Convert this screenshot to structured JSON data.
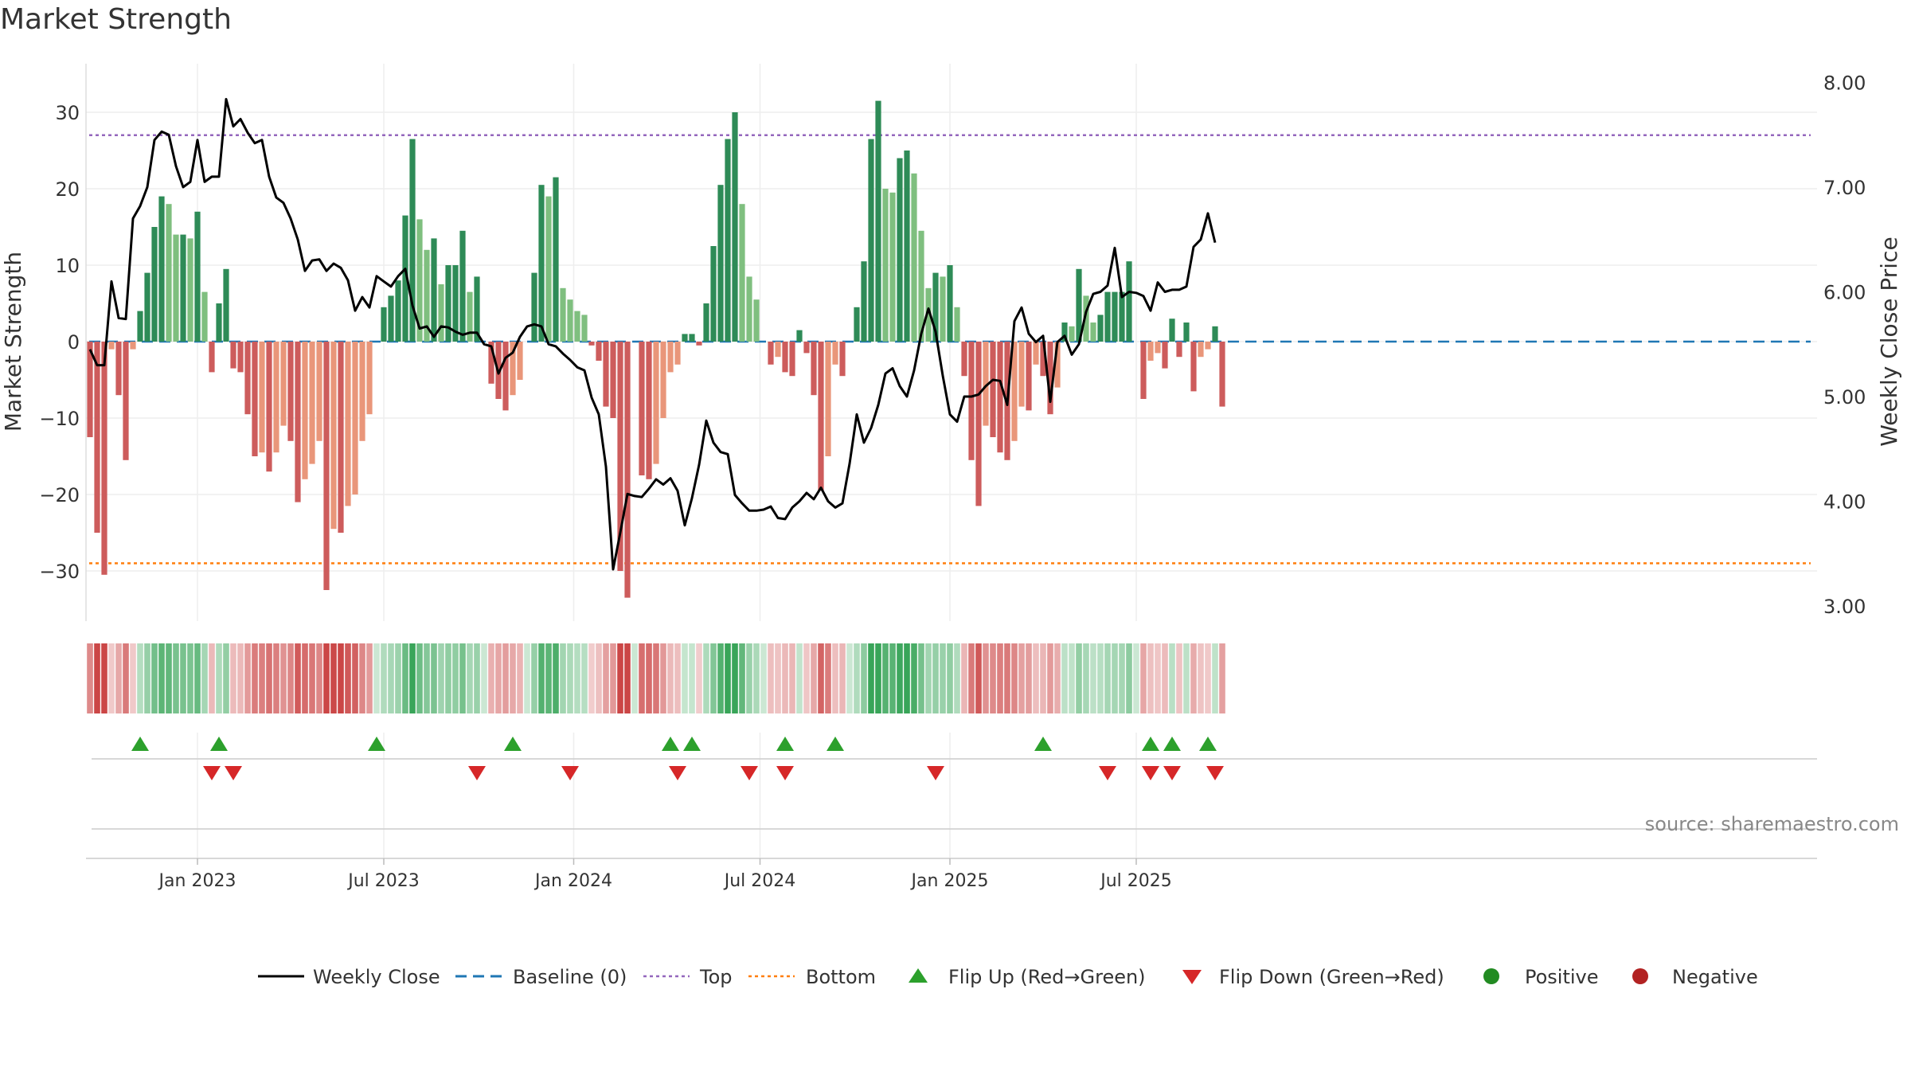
{
  "title": "Market Strength",
  "source": "source: sharemaestro.com",
  "colors": {
    "pos_strong": "#2e8b57",
    "pos_weak": "#7fbf7f",
    "neg_strong": "#cd5c5c",
    "neg_weak": "#e9967a",
    "close": "#000000",
    "baseline": "#1f77b4",
    "top": "#9467bd",
    "bottom": "#ff7f0e",
    "flip_up": "#2ca02c",
    "flip_down": "#d62728",
    "positive": "#228b22",
    "negative": "#b22222"
  },
  "chart_data": {
    "type": "bar",
    "title": "Market Strength",
    "ylabel": "Market Strength",
    "y2label": "Weekly Close Price",
    "ylim": [
      -36,
      36
    ],
    "y2lim": [
      2.85,
      8.2
    ],
    "yticks": [
      -30,
      -20,
      -10,
      0,
      10,
      20,
      30
    ],
    "ytick_labels": [
      "−30",
      "−20",
      "−10",
      "0",
      "10",
      "20",
      "30"
    ],
    "y2ticks": [
      3.0,
      4.0,
      5.0,
      6.0,
      7.0,
      8.0
    ],
    "y2tick_labels": [
      "3.00",
      "4.00",
      "5.00",
      "6.00",
      "7.00",
      "8.00"
    ],
    "xlim": [
      0,
      157
    ],
    "xticks": [
      15,
      41,
      67.5,
      93.5,
      120,
      146
    ],
    "xtick_labels": [
      "Jan 2023",
      "Jul 2023",
      "Jan 2024",
      "Jul 2024",
      "Jan 2025",
      "Jul 2025"
    ],
    "top_level": 27,
    "bottom_level": -29,
    "strength": [
      -12.5,
      -25,
      -30.5,
      -1,
      -7,
      -15.5,
      -1,
      4,
      9,
      15,
      19,
      18,
      14,
      14,
      13.5,
      17,
      6.5,
      -4,
      5,
      9.5,
      -3.5,
      -4,
      -9.5,
      -15,
      -14.5,
      -17,
      -14.5,
      -11,
      -13,
      -21,
      -18,
      -16,
      -13,
      -32.5,
      -24.5,
      -25,
      -21.5,
      -20,
      -13,
      -9.5,
      0,
      4.5,
      6,
      8,
      16.5,
      26.5,
      16,
      12,
      13.5,
      7.5,
      10,
      10,
      14.5,
      6.5,
      8.5,
      0,
      -5.5,
      -7.5,
      -9,
      -7,
      -5,
      0,
      9,
      20.5,
      19,
      21.5,
      7,
      5.5,
      4,
      3.5,
      -0.5,
      -2.5,
      -8.5,
      -10,
      -30,
      -33.5,
      0,
      -17.5,
      -18,
      -16,
      -10,
      -4,
      -3,
      1,
      1,
      -0.5,
      5,
      12.5,
      20.5,
      26.5,
      30,
      18,
      8.5,
      5.5,
      0,
      -3,
      -2,
      -4,
      -4.5,
      1.5,
      -1.5,
      -7,
      -19.5,
      -15,
      -3,
      -4.5,
      0,
      4.5,
      10.5,
      26.5,
      31.5,
      20,
      19.5,
      24,
      25,
      22,
      14.5,
      7,
      9,
      8.5,
      10,
      4.5,
      -4.5,
      -15.5,
      -21.5,
      -11,
      -12.5,
      -14.5,
      -15.5,
      -13,
      -8.5,
      -9,
      -3,
      -4.5,
      -9.5,
      -6,
      2.5,
      2,
      9.5,
      6,
      2.5,
      3.5,
      6.5,
      6.5,
      6.5,
      10.5,
      0,
      -7.5,
      -2.5,
      -1.5,
      -3.5,
      3,
      -2,
      2.5,
      -6.5,
      -2,
      -1,
      2,
      -8.5
    ],
    "close": [
      5.45,
      5.3,
      5.3,
      6.1,
      5.75,
      5.74,
      6.7,
      6.82,
      7.0,
      7.45,
      7.53,
      7.5,
      7.2,
      7.0,
      7.05,
      7.45,
      7.05,
      7.1,
      7.1,
      7.84,
      7.58,
      7.65,
      7.52,
      7.42,
      7.45,
      7.1,
      6.9,
      6.85,
      6.7,
      6.5,
      6.2,
      6.3,
      6.31,
      6.2,
      6.27,
      6.23,
      6.11,
      5.82,
      5.95,
      5.85,
      6.15,
      6.1,
      6.05,
      6.15,
      6.22,
      5.87,
      5.65,
      5.67,
      5.57,
      5.67,
      5.66,
      5.62,
      5.59,
      5.61,
      5.61,
      5.5,
      5.48,
      5.22,
      5.37,
      5.42,
      5.57,
      5.67,
      5.69,
      5.67,
      5.5,
      5.48,
      5.41,
      5.35,
      5.28,
      5.25,
      4.99,
      4.83,
      4.33,
      3.35,
      3.7,
      4.07,
      4.05,
      4.04,
      4.12,
      4.21,
      4.16,
      4.22,
      4.1,
      3.77,
      4.03,
      4.35,
      4.77,
      4.56,
      4.47,
      4.45,
      4.06,
      3.98,
      3.91,
      3.91,
      3.92,
      3.95,
      3.84,
      3.83,
      3.94,
      4.0,
      4.08,
      4.02,
      4.13,
      4.0,
      3.94,
      3.98,
      4.36,
      4.83,
      4.56,
      4.7,
      4.92,
      5.22,
      5.27,
      5.1,
      5.0,
      5.25,
      5.6,
      5.84,
      5.62,
      5.2,
      4.83,
      4.76,
      5.0,
      5.0,
      5.02,
      5.1,
      5.16,
      5.15,
      4.92,
      5.72,
      5.85,
      5.6,
      5.52,
      5.58,
      4.95,
      5.52,
      5.58,
      5.4,
      5.5,
      5.81,
      5.98,
      6.0,
      6.06,
      6.42,
      5.95,
      6.0,
      5.99,
      5.96,
      5.82,
      6.09,
      6.0,
      6.02,
      6.02,
      6.05,
      6.43,
      6.5,
      6.75,
      6.47
    ],
    "flips_up": [
      7,
      18,
      40,
      59,
      81,
      84,
      97,
      104,
      133,
      148,
      151,
      156
    ],
    "flips_down": [
      17,
      20,
      54,
      67,
      82,
      92,
      97,
      118,
      142,
      148,
      151,
      157
    ]
  },
  "legend": {
    "weekly_close": "Weekly Close",
    "baseline": "Baseline (0)",
    "top": "Top",
    "bottom": "Bottom",
    "flip_up": "Flip Up (Red→Green)",
    "flip_down": "Flip Down (Green→Red)",
    "positive": "Positive",
    "negative": "Negative"
  }
}
